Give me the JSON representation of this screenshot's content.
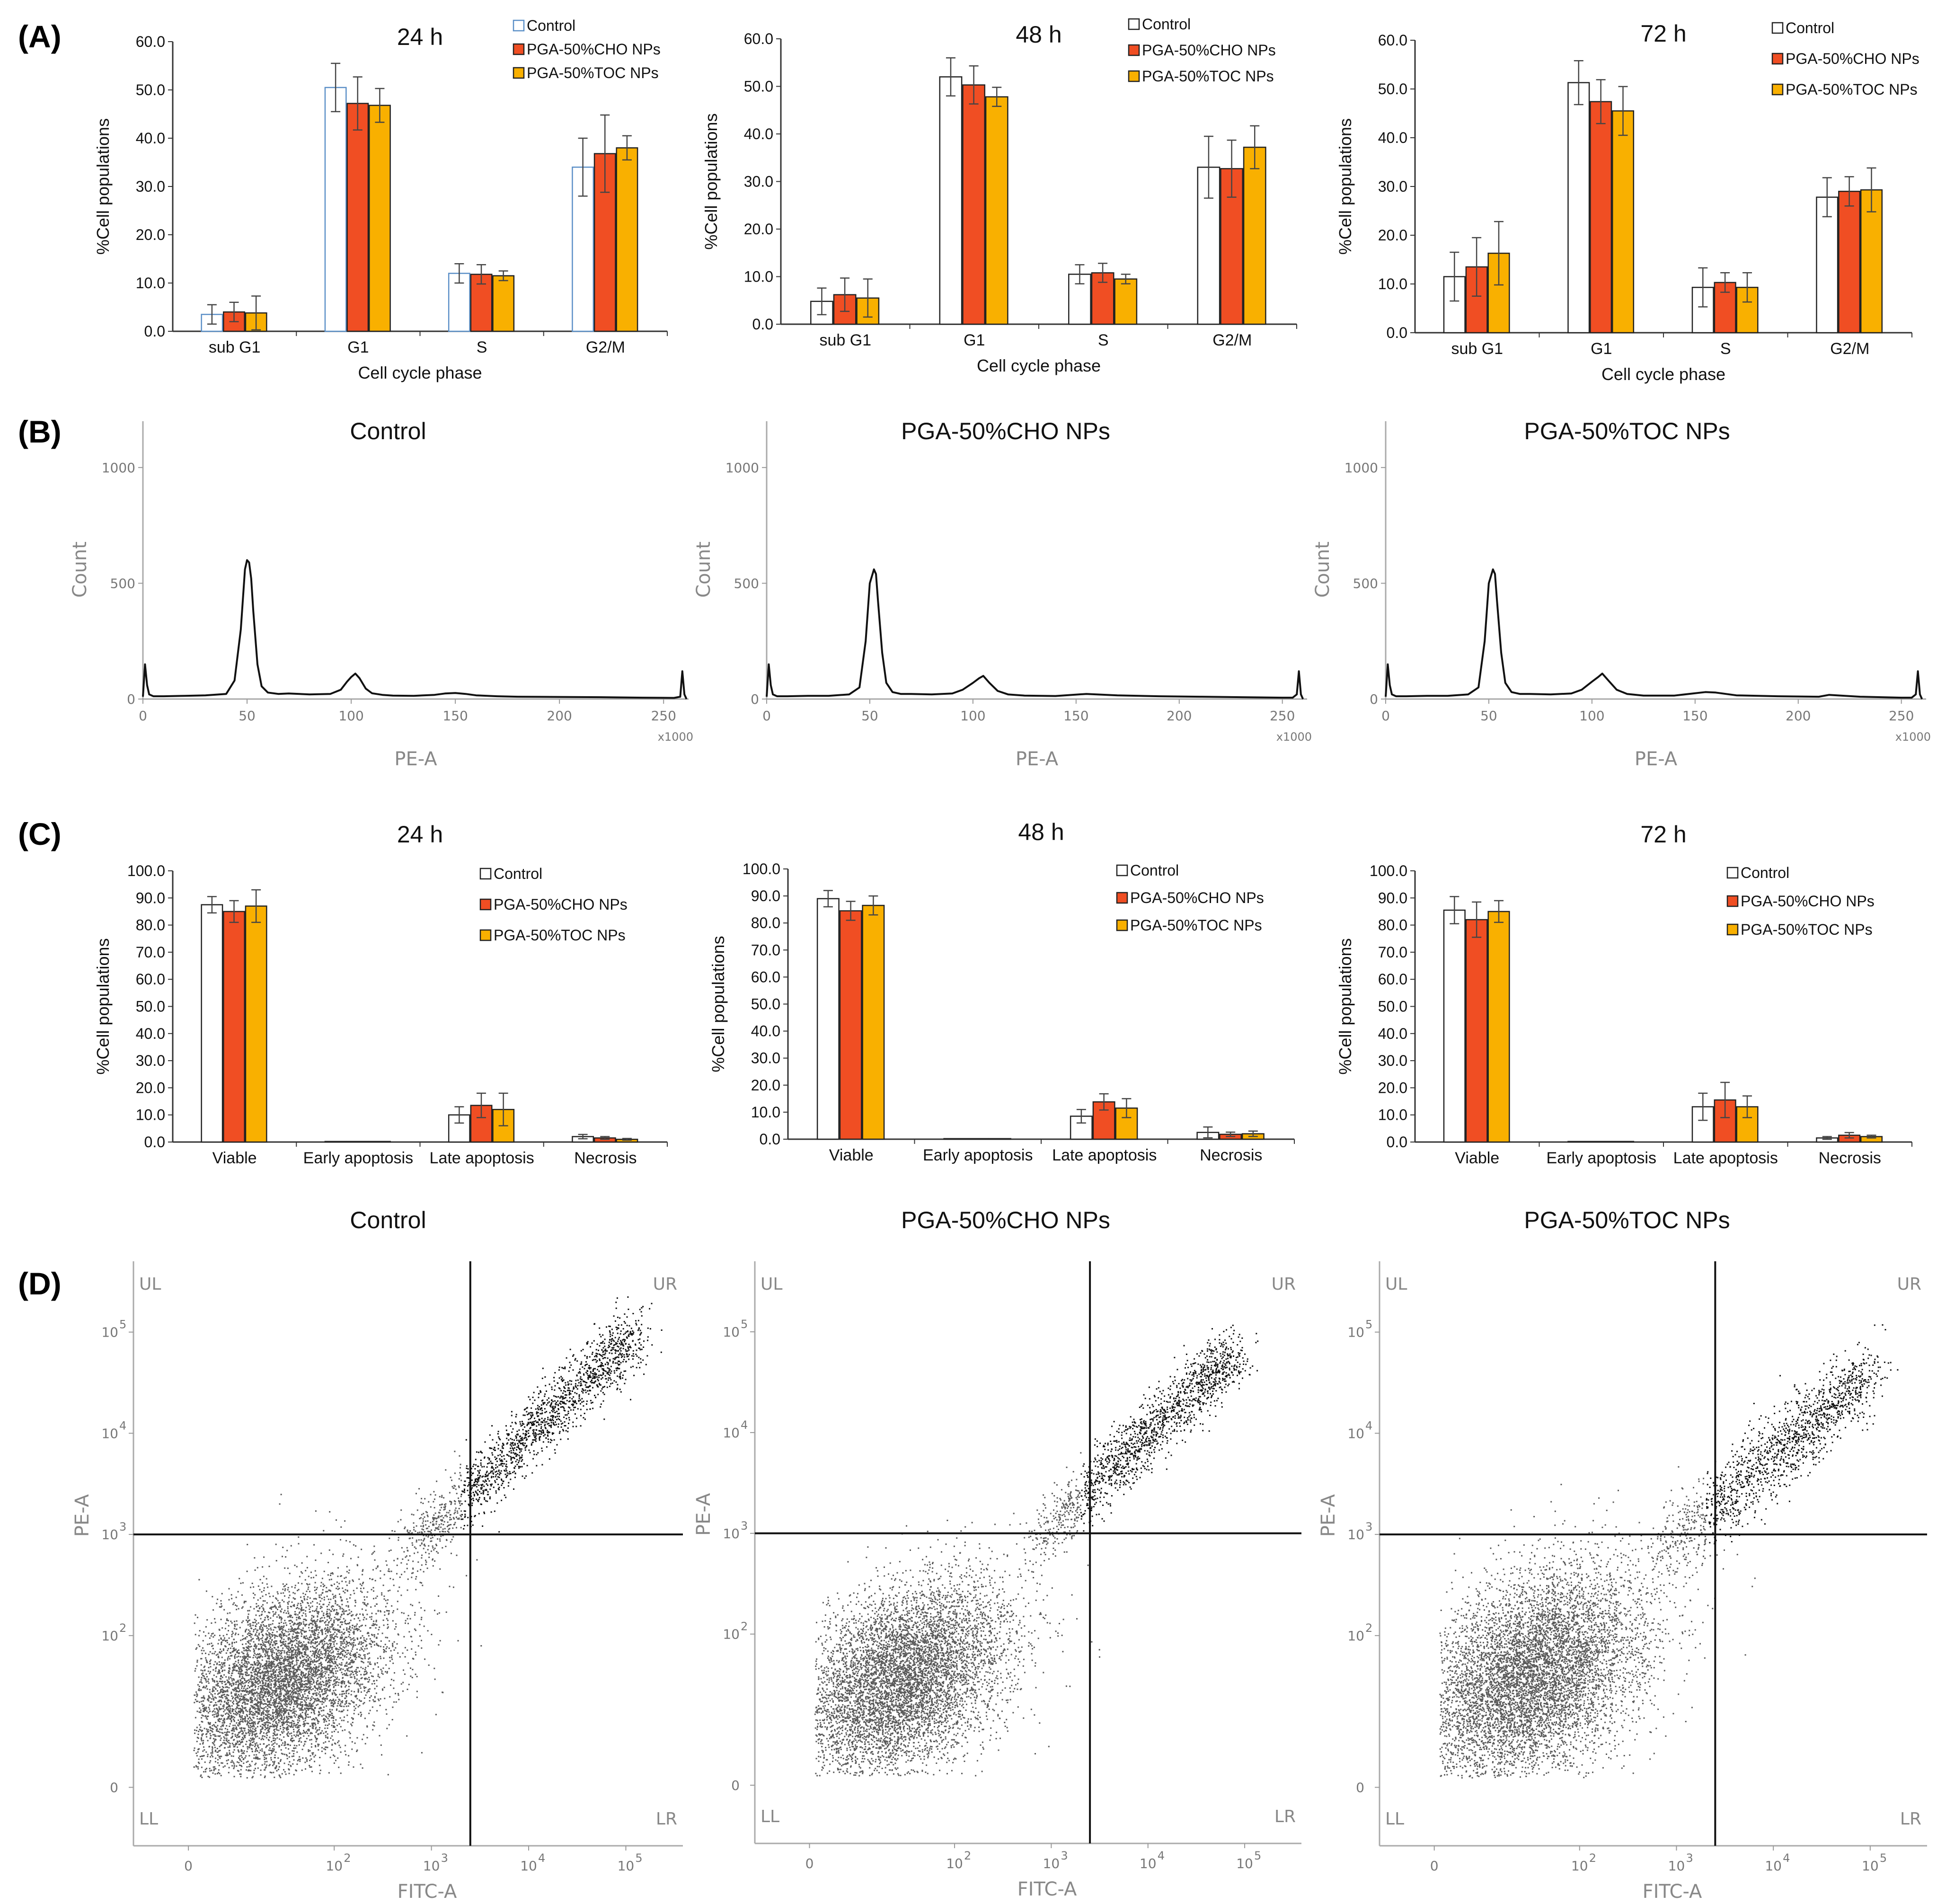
{
  "figure": {
    "panel_labels": [
      "(A)",
      "(B)",
      "(C)",
      "(D)"
    ]
  },
  "chart_data": [
    {
      "id": "A-24h",
      "type": "bar",
      "title": "24 h",
      "xlabel": "Cell cycle phase",
      "ylabel": "%Cell populations",
      "ylim": [
        0,
        60
      ],
      "yticks": [
        "0.0",
        "10.0",
        "20.0",
        "30.0",
        "40.0",
        "50.0",
        "60.0"
      ],
      "categories": [
        "sub G1",
        "G1",
        "S",
        "G2/M"
      ],
      "legend_position": "top-right",
      "series": [
        {
          "name": "Control",
          "values": [
            3.5,
            50.5,
            12.0,
            34.0
          ],
          "errors": [
            2.0,
            5.0,
            2.0,
            6.0
          ]
        },
        {
          "name": "PGA-50%CHO NPs",
          "values": [
            4.0,
            47.2,
            11.8,
            36.8
          ],
          "errors": [
            2.0,
            5.5,
            2.0,
            8.0
          ]
        },
        {
          "name": "PGA-50%TOC NPs",
          "values": [
            3.8,
            46.8,
            11.5,
            38.0
          ],
          "errors": [
            3.5,
            3.5,
            1.0,
            2.5
          ]
        }
      ]
    },
    {
      "id": "A-48h",
      "type": "bar",
      "title": "48 h",
      "xlabel": "Cell cycle phase",
      "ylabel": "%Cell populations",
      "ylim": [
        0,
        60
      ],
      "yticks": [
        "0.0",
        "10.0",
        "20.0",
        "30.0",
        "40.0",
        "50.0",
        "60.0"
      ],
      "categories": [
        "sub G1",
        "G1",
        "S",
        "G2/M"
      ],
      "legend_position": "top-right",
      "series": [
        {
          "name": "Control",
          "values": [
            4.8,
            52.0,
            10.5,
            33.0
          ],
          "errors": [
            2.8,
            4.0,
            2.0,
            6.5
          ]
        },
        {
          "name": "PGA-50%CHO NPs",
          "values": [
            6.2,
            50.3,
            10.8,
            32.7
          ],
          "errors": [
            3.5,
            4.0,
            2.0,
            6.0
          ]
        },
        {
          "name": "PGA-50%TOC NPs",
          "values": [
            5.5,
            47.8,
            9.5,
            37.2
          ],
          "errors": [
            4.0,
            2.0,
            1.0,
            4.5
          ]
        }
      ]
    },
    {
      "id": "A-72h",
      "type": "bar",
      "title": "72 h",
      "xlabel": "Cell cycle phase",
      "ylabel": "%Cell populations",
      "ylim": [
        0,
        60
      ],
      "yticks": [
        "0.0",
        "10.0",
        "20.0",
        "30.0",
        "40.0",
        "50.0",
        "60.0"
      ],
      "categories": [
        "sub G1",
        "G1",
        "S",
        "G2/M"
      ],
      "legend_position": "top-right",
      "series": [
        {
          "name": "Control",
          "values": [
            11.5,
            51.3,
            9.3,
            27.8
          ],
          "errors": [
            5.0,
            4.5,
            4.0,
            4.0
          ]
        },
        {
          "name": "PGA-50%CHO NPs",
          "values": [
            13.5,
            47.4,
            10.3,
            29.0
          ],
          "errors": [
            6.0,
            4.5,
            2.0,
            3.0
          ]
        },
        {
          "name": "PGA-50%TOC NPs",
          "values": [
            16.3,
            45.5,
            9.3,
            29.3
          ],
          "errors": [
            6.5,
            5.0,
            3.0,
            4.5
          ]
        }
      ]
    },
    {
      "id": "B-control",
      "type": "line",
      "title": "Control",
      "xlabel": "PE-A",
      "ylabel": "Count",
      "x_unit": "x1000",
      "xlim": [
        0,
        262
      ],
      "ylim": [
        0,
        1200
      ],
      "xticks": [
        "0",
        "50",
        "100",
        "150",
        "200",
        "250"
      ],
      "yticks": [
        "0",
        "500",
        "1000"
      ],
      "x": [
        0,
        1,
        2,
        3,
        5,
        10,
        20,
        30,
        40,
        44,
        47,
        49,
        50,
        51,
        52,
        53,
        55,
        57,
        60,
        65,
        70,
        80,
        90,
        95,
        98,
        100,
        102,
        104,
        107,
        110,
        115,
        120,
        130,
        140,
        145,
        150,
        155,
        160,
        170,
        180,
        200,
        220,
        240,
        255,
        258,
        259,
        260,
        261
      ],
      "y": [
        10,
        150,
        60,
        20,
        12,
        12,
        14,
        16,
        22,
        80,
        300,
        560,
        600,
        590,
        520,
        380,
        150,
        55,
        28,
        22,
        24,
        20,
        22,
        40,
        75,
        95,
        110,
        90,
        45,
        25,
        18,
        15,
        14,
        18,
        24,
        26,
        22,
        16,
        12,
        10,
        9,
        8,
        6,
        5,
        10,
        120,
        20,
        0
      ]
    },
    {
      "id": "B-cho",
      "type": "line",
      "title": "PGA-50%CHO NPs",
      "xlabel": "PE-A",
      "ylabel": "Count",
      "x_unit": "x1000",
      "xlim": [
        0,
        262
      ],
      "ylim": [
        0,
        1200
      ],
      "xticks": [
        "0",
        "50",
        "100",
        "150",
        "200",
        "250"
      ],
      "yticks": [
        "0",
        "500",
        "1000"
      ],
      "x": [
        0,
        1,
        2,
        3,
        5,
        10,
        20,
        30,
        40,
        45,
        48,
        50,
        52,
        53,
        54,
        56,
        58,
        61,
        65,
        70,
        80,
        90,
        95,
        100,
        103,
        105,
        108,
        112,
        117,
        125,
        140,
        155,
        160,
        170,
        190,
        210,
        230,
        250,
        255,
        257,
        258,
        259,
        260
      ],
      "y": [
        10,
        150,
        60,
        20,
        12,
        12,
        14,
        14,
        20,
        50,
        250,
        500,
        560,
        540,
        420,
        200,
        70,
        30,
        22,
        22,
        20,
        24,
        40,
        70,
        90,
        100,
        70,
        35,
        20,
        15,
        13,
        22,
        20,
        16,
        12,
        10,
        8,
        6,
        6,
        20,
        120,
        20,
        0
      ]
    },
    {
      "id": "B-toc",
      "type": "line",
      "title": "PGA-50%TOC NPs",
      "xlabel": "PE-A",
      "ylabel": "Count",
      "x_unit": "x1000",
      "xlim": [
        0,
        262
      ],
      "ylim": [
        0,
        1200
      ],
      "xticks": [
        "0",
        "50",
        "100",
        "150",
        "200",
        "250"
      ],
      "yticks": [
        "0",
        "500",
        "1000"
      ],
      "x": [
        0,
        1,
        2,
        3,
        5,
        10,
        20,
        30,
        40,
        45,
        48,
        50,
        52,
        53,
        54,
        56,
        58,
        61,
        65,
        70,
        80,
        90,
        95,
        100,
        103,
        105,
        108,
        112,
        117,
        125,
        140,
        155,
        160,
        170,
        190,
        210,
        215,
        230,
        250,
        255,
        257,
        258,
        259,
        260
      ],
      "y": [
        10,
        150,
        60,
        20,
        12,
        12,
        14,
        14,
        20,
        50,
        250,
        500,
        560,
        540,
        420,
        200,
        70,
        30,
        22,
        22,
        20,
        24,
        40,
        75,
        95,
        110,
        80,
        40,
        22,
        15,
        15,
        30,
        28,
        16,
        12,
        10,
        18,
        10,
        6,
        6,
        20,
        120,
        20,
        0
      ]
    },
    {
      "id": "C-24h",
      "type": "bar",
      "title": "24 h",
      "xlabel": "",
      "ylabel": "%Cell populations",
      "ylim": [
        0,
        100
      ],
      "yticks": [
        "0.0",
        "10.0",
        "20.0",
        "30.0",
        "40.0",
        "50.0",
        "60.0",
        "70.0",
        "80.0",
        "90.0",
        "100.0"
      ],
      "categories": [
        "Viable",
        "Early apoptosis",
        "Late apoptosis",
        "Necrosis"
      ],
      "legend_position": "top-right",
      "series": [
        {
          "name": "Control",
          "values": [
            87.5,
            0.2,
            10.0,
            2.0
          ],
          "errors": [
            3.0,
            0.0,
            3.0,
            0.8
          ]
        },
        {
          "name": "PGA-50%CHO NPs",
          "values": [
            85.0,
            0.2,
            13.5,
            1.5
          ],
          "errors": [
            4.0,
            0.0,
            4.5,
            0.5
          ]
        },
        {
          "name": "PGA-50%TOC NPs",
          "values": [
            87.0,
            0.2,
            12.0,
            1.0
          ],
          "errors": [
            6.0,
            0.0,
            6.0,
            0.3
          ]
        }
      ]
    },
    {
      "id": "C-48h",
      "type": "bar",
      "title": "48 h",
      "xlabel": "",
      "ylabel": "%Cell populations",
      "ylim": [
        0,
        100
      ],
      "yticks": [
        "0.0",
        "10.0",
        "20.0",
        "30.0",
        "40.0",
        "50.0",
        "60.0",
        "70.0",
        "80.0",
        "90.0",
        "100.0"
      ],
      "categories": [
        "Viable",
        "Early apoptosis",
        "Late apoptosis",
        "Necrosis"
      ],
      "legend_position": "top-right",
      "series": [
        {
          "name": "Control",
          "values": [
            89.0,
            0.2,
            8.5,
            2.5
          ],
          "errors": [
            3.0,
            0.0,
            2.5,
            2.0
          ]
        },
        {
          "name": "PGA-50%CHO NPs",
          "values": [
            84.5,
            0.2,
            13.8,
            1.8
          ],
          "errors": [
            3.5,
            0.0,
            3.0,
            0.8
          ]
        },
        {
          "name": "PGA-50%TOC NPs",
          "values": [
            86.5,
            0.2,
            11.5,
            2.0
          ],
          "errors": [
            3.5,
            0.0,
            3.5,
            1.0
          ]
        }
      ]
    },
    {
      "id": "C-72h",
      "type": "bar",
      "title": "72 h",
      "xlabel": "",
      "ylabel": "%Cell populations",
      "ylim": [
        0,
        100
      ],
      "yticks": [
        "0.0",
        "10.0",
        "20.0",
        "30.0",
        "40.0",
        "50.0",
        "60.0",
        "70.0",
        "80.0",
        "90.0",
        "100.0"
      ],
      "categories": [
        "Viable",
        "Early apoptosis",
        "Late apoptosis",
        "Necrosis"
      ],
      "legend_position": "top-right",
      "series": [
        {
          "name": "Control",
          "values": [
            85.5,
            0.2,
            13.0,
            1.5
          ],
          "errors": [
            5.0,
            0.0,
            5.0,
            0.5
          ]
        },
        {
          "name": "PGA-50%CHO NPs",
          "values": [
            82.0,
            0.2,
            15.5,
            2.5
          ],
          "errors": [
            6.5,
            0.0,
            6.5,
            1.0
          ]
        },
        {
          "name": "PGA-50%TOC NPs",
          "values": [
            85.0,
            0.2,
            13.0,
            2.0
          ],
          "errors": [
            4.0,
            0.0,
            4.0,
            0.5
          ]
        }
      ]
    },
    {
      "id": "D-control",
      "type": "scatter",
      "title": "Control",
      "xlabel": "FITC-A",
      "ylabel": "PE-A",
      "quadrants": [
        "UL",
        "UR",
        "LL",
        "LR"
      ],
      "xticks": [
        "0",
        "10",
        "10",
        "10",
        "10"
      ],
      "xtick_exps": [
        "",
        "2",
        "3",
        "4",
        "5"
      ],
      "yticks": [
        "0",
        "10",
        "10",
        "10",
        "10"
      ],
      "ytick_exps": [
        "",
        "2",
        "3",
        "4",
        "5"
      ],
      "gate_x_log": 3.4,
      "gate_y_log": 3.0,
      "populations": [
        {
          "name": "main",
          "n": 6500,
          "center_log": [
            1.45,
            1.55
          ],
          "spread_log": [
            0.55,
            0.45
          ]
        },
        {
          "name": "diagonal",
          "n": 1800,
          "from_log": [
            2.7,
            2.8
          ],
          "to_log": [
            5.1,
            5.0
          ],
          "jitter_log": 0.1
        }
      ],
      "scatter_seed": 1
    },
    {
      "id": "D-cho",
      "type": "scatter",
      "title": "PGA-50%CHO NPs",
      "xlabel": "FITC-A",
      "ylabel": "PE-A",
      "quadrants": [
        "UL",
        "UR",
        "LL",
        "LR"
      ],
      "xticks": [
        "0",
        "10",
        "10",
        "10",
        "10"
      ],
      "xtick_exps": [
        "",
        "2",
        "3",
        "4",
        "5"
      ],
      "yticks": [
        "0",
        "10",
        "10",
        "10",
        "10"
      ],
      "ytick_exps": [
        "",
        "2",
        "3",
        "4",
        "5"
      ],
      "gate_x_log": 3.4,
      "gate_y_log": 3.0,
      "populations": [
        {
          "name": "main",
          "n": 6500,
          "center_log": [
            1.45,
            1.55
          ],
          "spread_log": [
            0.55,
            0.45
          ]
        },
        {
          "name": "diagonal",
          "n": 1600,
          "from_log": [
            2.8,
            2.9
          ],
          "to_log": [
            4.9,
            4.8
          ],
          "jitter_log": 0.1
        }
      ],
      "scatter_seed": 2
    },
    {
      "id": "D-toc",
      "type": "scatter",
      "title": "PGA-50%TOC NPs",
      "xlabel": "FITC-A",
      "ylabel": "PE-A",
      "quadrants": [
        "UL",
        "UR",
        "LL",
        "LR"
      ],
      "xticks": [
        "0",
        "10",
        "10",
        "10",
        "10"
      ],
      "xtick_exps": [
        "",
        "2",
        "3",
        "4",
        "5"
      ],
      "yticks": [
        "0",
        "10",
        "10",
        "10",
        "10"
      ],
      "ytick_exps": [
        "",
        "2",
        "3",
        "4",
        "5"
      ],
      "gate_x_log": 3.4,
      "gate_y_log": 3.0,
      "populations": [
        {
          "name": "main",
          "n": 7000,
          "center_log": [
            1.5,
            1.6
          ],
          "spread_log": [
            0.6,
            0.5
          ]
        },
        {
          "name": "diagonal",
          "n": 1500,
          "from_log": [
            2.8,
            2.8
          ],
          "to_log": [
            5.0,
            4.6
          ],
          "jitter_log": 0.12
        }
      ],
      "scatter_seed": 3
    }
  ],
  "colors": {
    "Control_A24": "#5b8fc7",
    "Control": "#ffffff",
    "CHO": "#f04e23",
    "TOC": "#f9b000",
    "outline": "#222222"
  }
}
